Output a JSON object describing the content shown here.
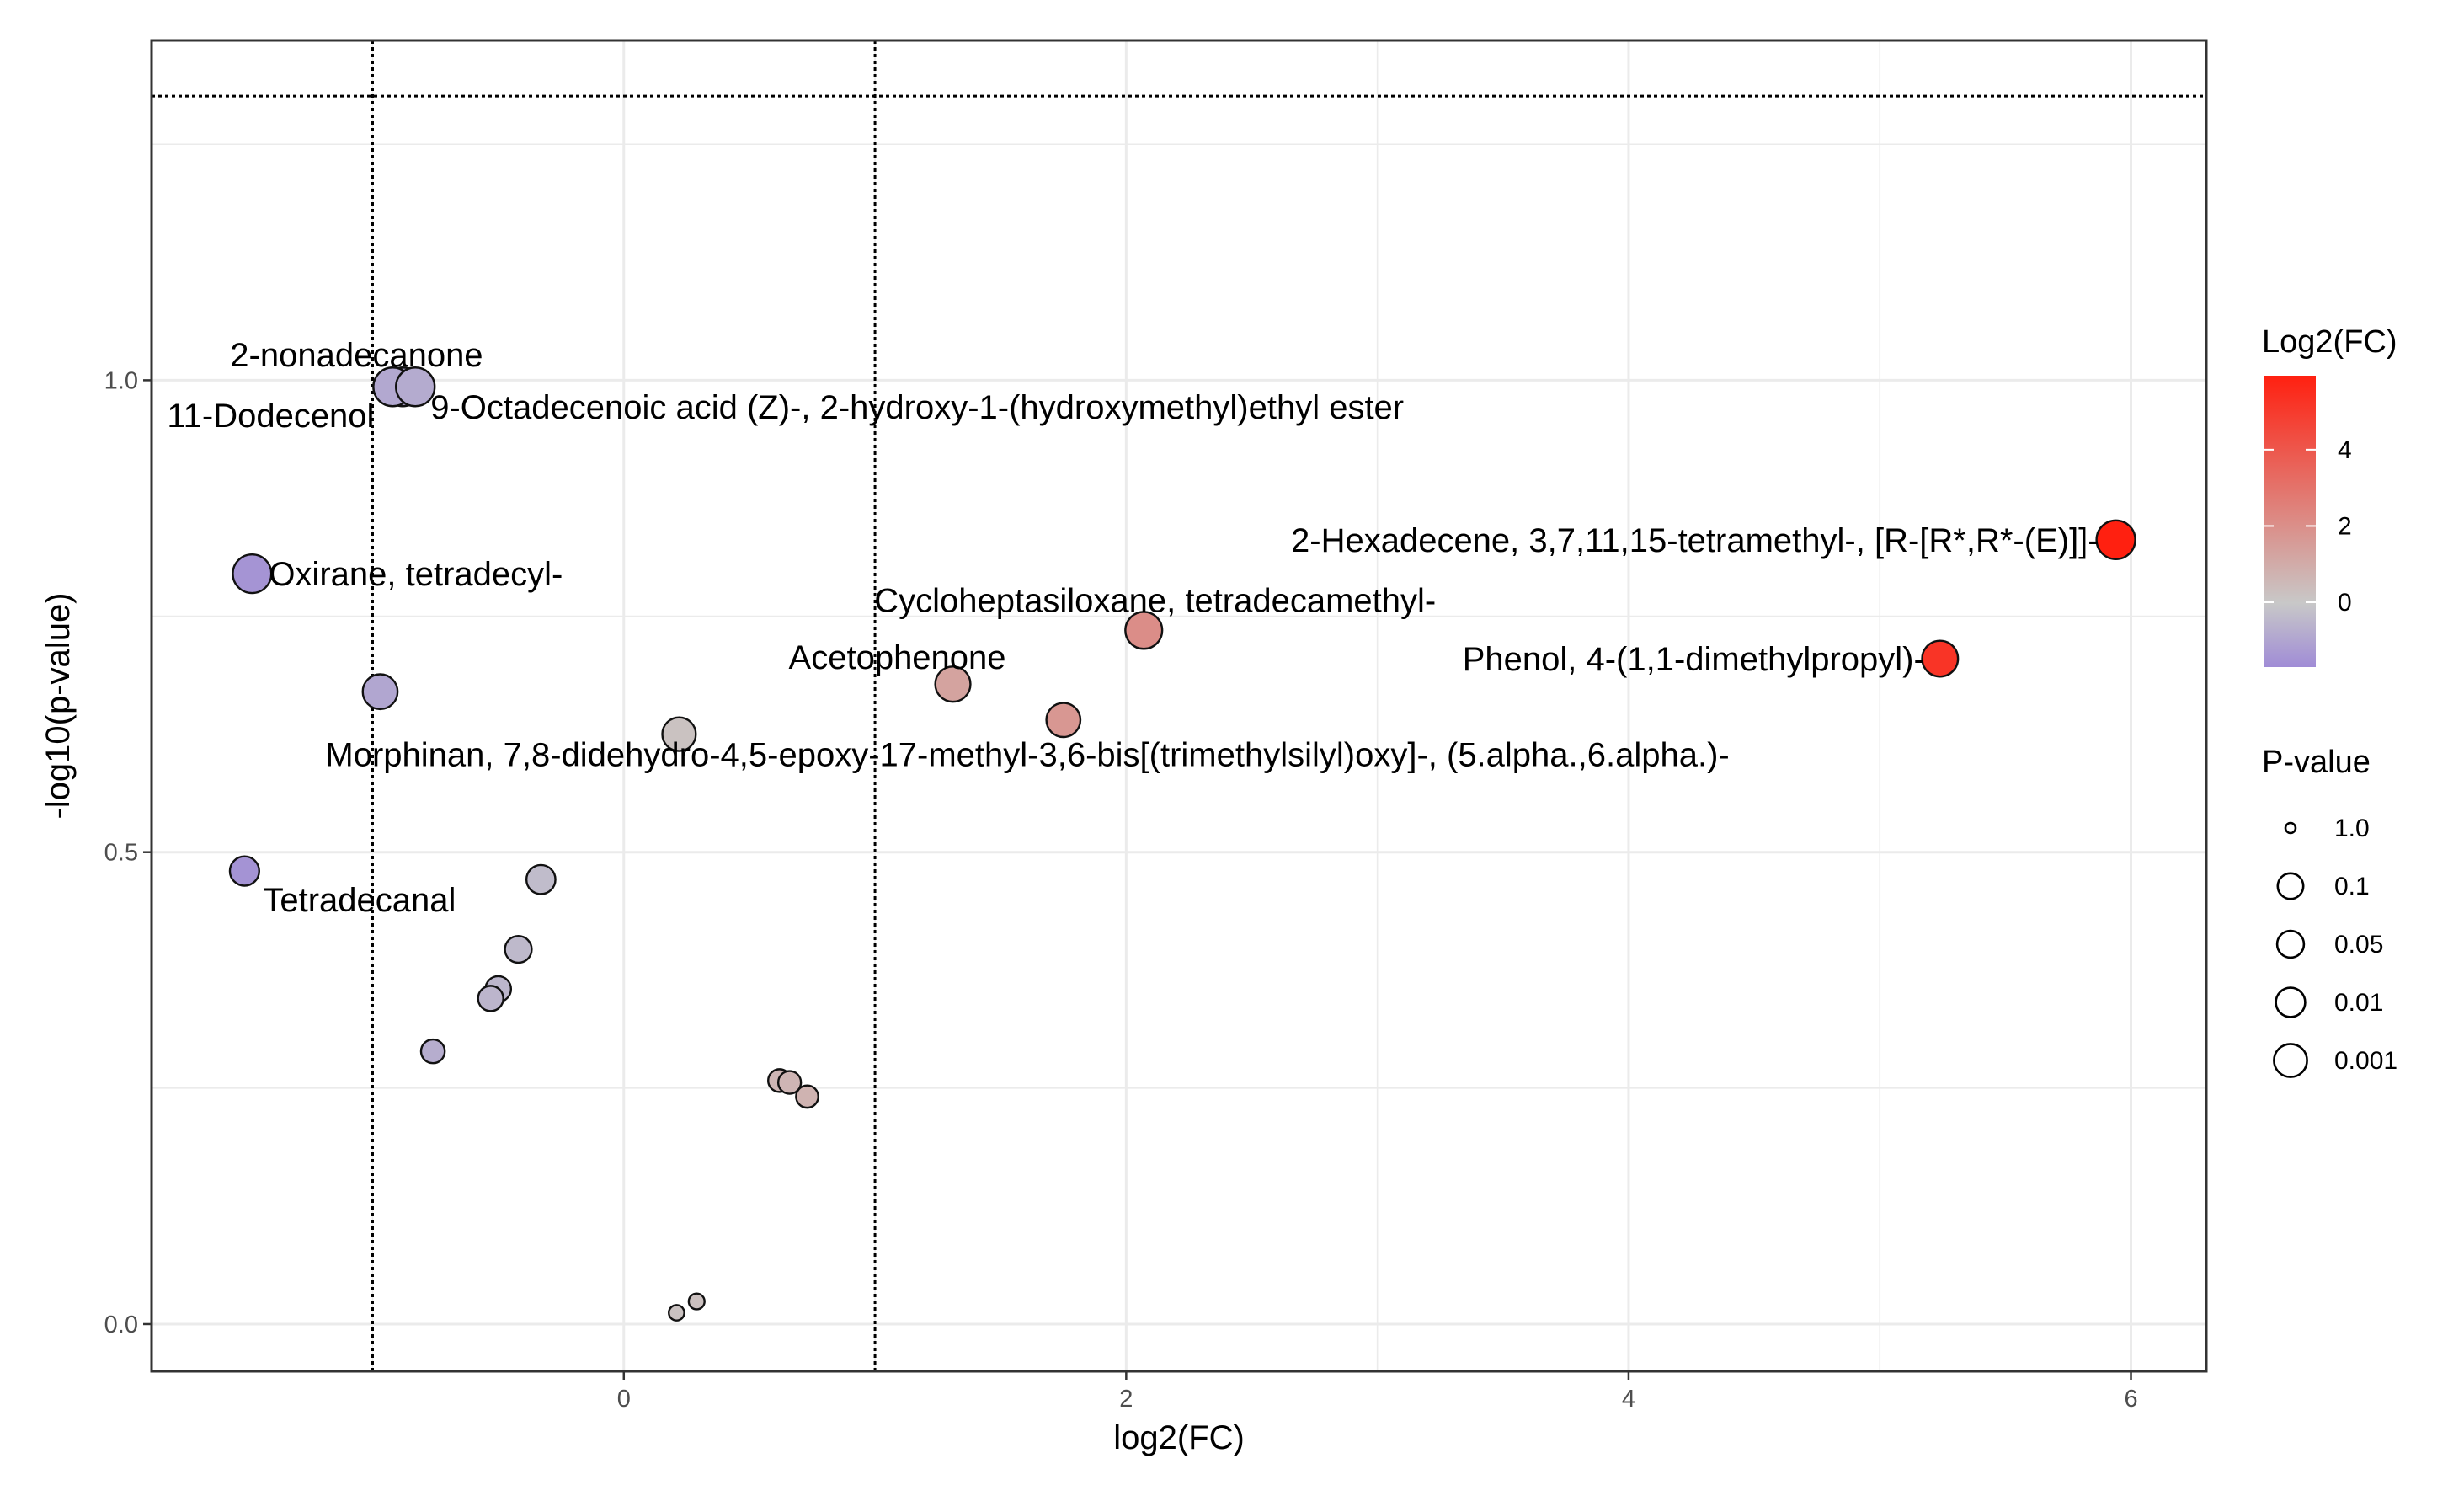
{
  "chart_data": {
    "type": "scatter",
    "xlabel": "log2(FC)",
    "ylabel": "-log10(p-value)",
    "xlim": [
      -1.88,
      6.3
    ],
    "ylim": [
      -0.05,
      1.36
    ],
    "x_ticks": [
      0,
      2,
      4,
      6
    ],
    "y_ticks": [
      0.0,
      0.5,
      1.0
    ],
    "grid": true,
    "reference_lines": {
      "vertical": [
        -1,
        1
      ],
      "horizontal": [
        1.301
      ]
    },
    "color_scale": {
      "title": "Log2(FC)",
      "ticks": [
        0,
        2,
        4
      ],
      "low": "#a08cd6",
      "mid": "#c8c8c8",
      "high": "#ff2010",
      "range": [
        -1.7,
        5.94
      ]
    },
    "size_legend": {
      "title": "P-value",
      "entries": [
        "1.0",
        "0.1",
        "0.05",
        "0.01",
        "0.001"
      ]
    },
    "points": [
      {
        "x": -0.88,
        "y": 0.993,
        "p": 0.102,
        "label": "2-nonadecanone"
      },
      {
        "x": -0.92,
        "y": 0.993,
        "p": 0.102,
        "label": "11-Dodecenol"
      },
      {
        "x": -0.83,
        "y": 0.993,
        "p": 0.102,
        "label": "9-Octadecenoic acid (Z)-, 2-hydroxy-1-(hydroxymethyl)ethyl ester"
      },
      {
        "x": -1.48,
        "y": 0.795,
        "p": 0.16,
        "label": "Oxirane, tetradecyl-"
      },
      {
        "x": -0.97,
        "y": 0.67,
        "p": 0.214,
        "label": ""
      },
      {
        "x": 0.22,
        "y": 0.625,
        "p": 0.237,
        "label": "Morphinan, 7,8-didehydro-4,5-epoxy-17-methyl-3,6-bis[(trimethylsilyl)oxy]-, (5.alpha.,6.alpha.)-"
      },
      {
        "x": -1.51,
        "y": 0.48,
        "p": 0.331,
        "label": "Tetradecanal"
      },
      {
        "x": -0.33,
        "y": 0.471,
        "p": 0.338,
        "label": ""
      },
      {
        "x": -0.42,
        "y": 0.397,
        "p": 0.401,
        "label": ""
      },
      {
        "x": -0.5,
        "y": 0.355,
        "p": 0.442,
        "label": ""
      },
      {
        "x": -0.53,
        "y": 0.345,
        "p": 0.452,
        "label": ""
      },
      {
        "x": -0.76,
        "y": 0.289,
        "p": 0.514,
        "label": ""
      },
      {
        "x": 0.62,
        "y": 0.258,
        "p": 0.552,
        "label": ""
      },
      {
        "x": 0.66,
        "y": 0.256,
        "p": 0.555,
        "label": ""
      },
      {
        "x": 0.73,
        "y": 0.241,
        "p": 0.574,
        "label": ""
      },
      {
        "x": 0.29,
        "y": 0.024,
        "p": 0.946,
        "label": ""
      },
      {
        "x": 0.21,
        "y": 0.012,
        "p": 0.973,
        "label": ""
      },
      {
        "x": 1.31,
        "y": 0.678,
        "p": 0.21,
        "label": "Acetophenone"
      },
      {
        "x": 1.75,
        "y": 0.64,
        "p": 0.229,
        "label": ""
      },
      {
        "x": 2.07,
        "y": 0.735,
        "p": 0.184,
        "label": "Cycloheptasiloxane, tetradecamethyl-"
      },
      {
        "x": 5.94,
        "y": 0.831,
        "p": 0.148,
        "label": "2-Hexadecene, 3,7,11,15-tetramethyl-, [R-[R*,R*-(E)]]-"
      },
      {
        "x": 5.24,
        "y": 0.705,
        "p": 0.197,
        "label": "Phenol, 4-(1,1-dimethylpropyl)-"
      }
    ]
  }
}
